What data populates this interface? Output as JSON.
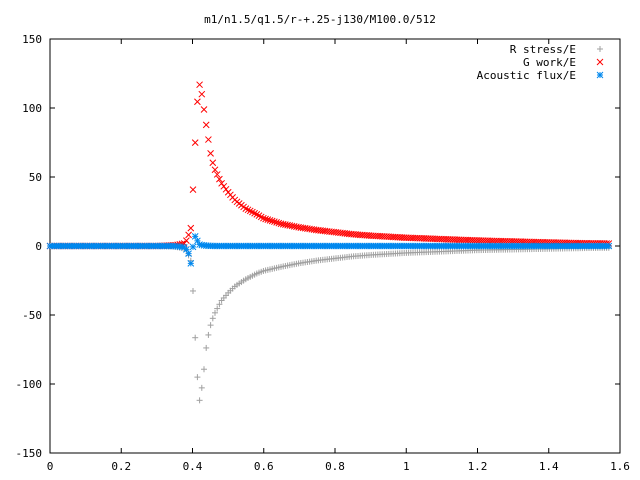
{
  "chart_data": {
    "type": "scatter",
    "title": "m1/n1.5/q1.5/r-+.25-j130/M100.0/512",
    "xlabel": "",
    "ylabel": "",
    "xlim": [
      0,
      1.6
    ],
    "ylim": [
      -150,
      150
    ],
    "xticks": [
      "0",
      "0.2",
      "0.4",
      "0.6",
      "0.8",
      "1",
      "1.2",
      "1.4",
      "1.6"
    ],
    "yticks": [
      "150",
      "100",
      "50",
      "0",
      "-50",
      "-100",
      "-150"
    ],
    "grid": false,
    "legend_position": "top-right",
    "series": [
      {
        "name": "R stress/E",
        "marker": "plus",
        "color": "#a0a0a0",
        "x": [
          0.0,
          0.1,
          0.2,
          0.3,
          0.35,
          0.38,
          0.395,
          0.4,
          0.405,
          0.41,
          0.415,
          0.42,
          0.425,
          0.43,
          0.44,
          0.45,
          0.46,
          0.48,
          0.5,
          0.52,
          0.55,
          0.58,
          0.6,
          0.65,
          0.7,
          0.75,
          0.8,
          0.85,
          0.9,
          1.0,
          1.1,
          1.2,
          1.3,
          1.4,
          1.5,
          1.57
        ],
        "y": [
          0,
          0,
          0,
          0,
          -0.5,
          -2,
          -10,
          -25,
          -52,
          -80,
          -100,
          -112,
          -105,
          -95,
          -70,
          -58,
          -50,
          -40,
          -34,
          -29,
          -24,
          -20,
          -18,
          -15,
          -12.5,
          -10.5,
          -9,
          -7.5,
          -6.5,
          -5,
          -4,
          -3,
          -2.5,
          -2,
          -1.5,
          -1.3
        ]
      },
      {
        "name": "G work/E",
        "marker": "cross",
        "color": "#ff0000",
        "x": [
          0.0,
          0.1,
          0.2,
          0.3,
          0.35,
          0.38,
          0.395,
          0.4,
          0.405,
          0.41,
          0.415,
          0.42,
          0.425,
          0.43,
          0.44,
          0.45,
          0.46,
          0.48,
          0.5,
          0.52,
          0.55,
          0.58,
          0.6,
          0.65,
          0.7,
          0.75,
          0.8,
          0.85,
          0.9,
          1.0,
          1.1,
          1.2,
          1.3,
          1.4,
          1.5,
          1.57
        ],
        "y": [
          0,
          0,
          0,
          0,
          0.5,
          2,
          12,
          33,
          61,
          88,
          110,
          117,
          112,
          103,
          85,
          68,
          57,
          46,
          39,
          33,
          27,
          23,
          20,
          16,
          13.5,
          11.5,
          10,
          8.5,
          7.5,
          6,
          5,
          4,
          3.3,
          2.6,
          2,
          1.8
        ]
      },
      {
        "name": "Acoustic flux/E",
        "marker": "star",
        "color": "#0088ee",
        "x": [
          0.0,
          0.05,
          0.1,
          0.15,
          0.2,
          0.25,
          0.3,
          0.35,
          0.38,
          0.39,
          0.395,
          0.4,
          0.405,
          0.41,
          0.415,
          0.42,
          0.43,
          0.44,
          0.46,
          0.5,
          0.6,
          0.7,
          0.8,
          0.9,
          1.0,
          1.1,
          1.2,
          1.3,
          1.4,
          1.5,
          1.57
        ],
        "y": [
          0,
          0,
          0,
          0,
          0,
          0,
          0,
          0,
          -1,
          -6,
          -13,
          -4,
          8,
          6,
          3,
          1,
          0.5,
          0.2,
          0,
          0,
          0,
          0,
          0,
          0,
          0,
          0,
          0,
          0,
          0,
          0,
          0
        ]
      }
    ]
  }
}
